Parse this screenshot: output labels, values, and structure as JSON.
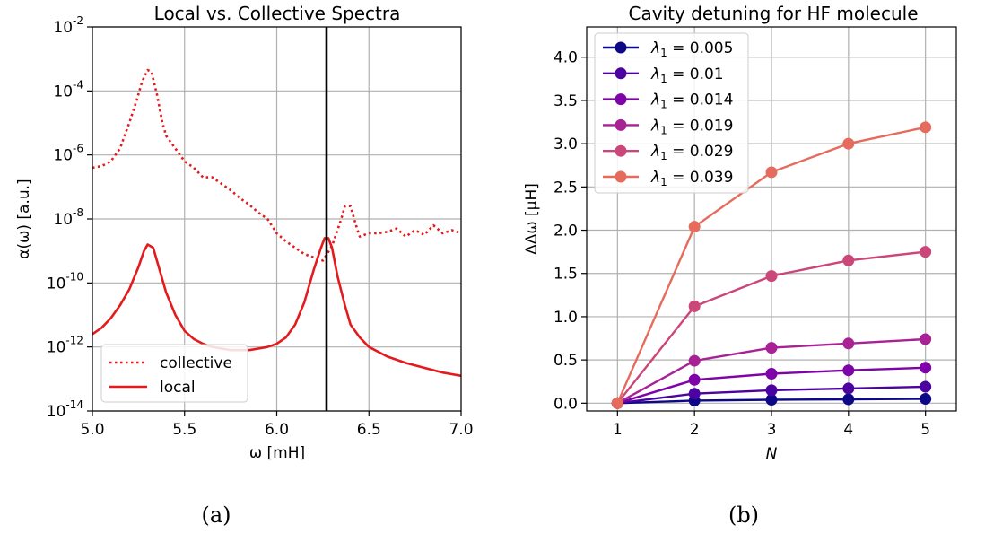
{
  "chart_data": [
    {
      "type": "line",
      "title": "Local vs. Collective Spectra",
      "xlabel": "ω [mH]",
      "ylabel": "α(ω) [a.u.]",
      "xlim": [
        5.0,
        7.0
      ],
      "ylim_log10": [
        -14,
        -2
      ],
      "yscale": "log",
      "grid": true,
      "legend_placement": "lower-left",
      "x_ticks": [
        "5.0",
        "5.5",
        "6.0",
        "6.5",
        "7.0"
      ],
      "x_tick_values": [
        5.0,
        5.5,
        6.0,
        6.5,
        7.0
      ],
      "y_tick_exponents": [
        "-14",
        "-12",
        "-10",
        "-8",
        "-6",
        "-4",
        "-2"
      ],
      "y_tick_values_log10": [
        -14,
        -12,
        -10,
        -8,
        -6,
        -4,
        -2
      ],
      "y_tick_base": "10",
      "vline_x": 6.27,
      "caption": "(a)",
      "series": [
        {
          "name": "collective",
          "style": "dotted",
          "color": "#e41a1c",
          "x": [
            5.0,
            5.05,
            5.1,
            5.15,
            5.2,
            5.24,
            5.27,
            5.3,
            5.32,
            5.35,
            5.38,
            5.4,
            5.45,
            5.5,
            5.55,
            5.6,
            5.65,
            5.7,
            5.75,
            5.8,
            5.85,
            5.9,
            5.95,
            6.0,
            6.05,
            6.1,
            6.15,
            6.2,
            6.25,
            6.3,
            6.35,
            6.37,
            6.4,
            6.43,
            6.45,
            6.5,
            6.55,
            6.6,
            6.65,
            6.7,
            6.75,
            6.8,
            6.85,
            6.9,
            6.95,
            7.0
          ],
          "log10_y": [
            -6.4,
            -6.35,
            -6.2,
            -5.8,
            -5.0,
            -4.3,
            -3.7,
            -3.35,
            -3.4,
            -4.1,
            -5.0,
            -5.4,
            -5.8,
            -6.2,
            -6.4,
            -6.7,
            -6.7,
            -6.9,
            -7.1,
            -7.35,
            -7.55,
            -7.8,
            -8.0,
            -8.45,
            -8.7,
            -8.9,
            -9.1,
            -9.2,
            -9.3,
            -8.85,
            -8.0,
            -7.6,
            -7.6,
            -8.2,
            -8.55,
            -8.45,
            -8.45,
            -8.4,
            -8.3,
            -8.55,
            -8.35,
            -8.5,
            -8.2,
            -8.45,
            -8.35,
            -8.45
          ]
        },
        {
          "name": "local",
          "style": "solid",
          "color": "#e41a1c",
          "x": [
            5.0,
            5.05,
            5.1,
            5.15,
            5.2,
            5.25,
            5.28,
            5.3,
            5.33,
            5.35,
            5.4,
            5.45,
            5.5,
            5.55,
            5.6,
            5.65,
            5.7,
            5.75,
            5.8,
            5.85,
            5.9,
            5.95,
            6.0,
            6.05,
            6.1,
            6.15,
            6.2,
            6.24,
            6.26,
            6.28,
            6.3,
            6.33,
            6.37,
            6.4,
            6.45,
            6.5,
            6.6,
            6.7,
            6.8,
            6.9,
            7.0
          ],
          "log10_y": [
            -11.6,
            -11.4,
            -11.1,
            -10.7,
            -10.2,
            -9.5,
            -9.0,
            -8.8,
            -8.9,
            -9.3,
            -10.3,
            -11.0,
            -11.5,
            -11.75,
            -11.9,
            -12.0,
            -12.05,
            -12.1,
            -12.1,
            -12.1,
            -12.05,
            -12.0,
            -11.9,
            -11.7,
            -11.3,
            -10.6,
            -9.6,
            -8.9,
            -8.6,
            -8.6,
            -8.9,
            -9.8,
            -10.7,
            -11.3,
            -11.7,
            -12.0,
            -12.3,
            -12.5,
            -12.65,
            -12.8,
            -12.9
          ]
        }
      ]
    },
    {
      "type": "line",
      "title": "Cavity detuning for HF molecule",
      "xlabel": "N",
      "ylabel": "ΔΔω [μH]",
      "xlim": [
        0.6,
        5.4
      ],
      "ylim": [
        -0.09,
        4.35
      ],
      "grid": true,
      "legend_placement": "top-left",
      "x_ticks": [
        "1",
        "2",
        "3",
        "4",
        "5"
      ],
      "x_tick_values": [
        1,
        2,
        3,
        4,
        5
      ],
      "y_ticks": [
        "0.0",
        "0.5",
        "1.0",
        "1.5",
        "2.0",
        "2.5",
        "3.0",
        "3.5",
        "4.0"
      ],
      "y_tick_values": [
        0.0,
        0.5,
        1.0,
        1.5,
        2.0,
        2.5,
        3.0,
        3.5,
        4.0
      ],
      "caption": "(b)",
      "categories": [
        1,
        2,
        3,
        4,
        5
      ],
      "series": [
        {
          "symbol": "λ",
          "subscript": "1",
          "value_text": " = 0.005",
          "color": "#0d0887",
          "values": [
            0.0,
            0.03,
            0.04,
            0.045,
            0.05
          ]
        },
        {
          "symbol": "λ",
          "subscript": "1",
          "value_text": " = 0.01",
          "color": "#4c02a1",
          "values": [
            0.0,
            0.11,
            0.15,
            0.17,
            0.19
          ]
        },
        {
          "symbol": "λ",
          "subscript": "1",
          "value_text": " = 0.014",
          "color": "#7e03a8",
          "values": [
            0.0,
            0.27,
            0.34,
            0.38,
            0.41
          ]
        },
        {
          "symbol": "λ",
          "subscript": "1",
          "value_text": " = 0.019",
          "color": "#a82296",
          "values": [
            0.0,
            0.49,
            0.64,
            0.69,
            0.74
          ]
        },
        {
          "symbol": "λ",
          "subscript": "1",
          "value_text": " = 0.029",
          "color": "#cb4679",
          "values": [
            0.0,
            1.12,
            1.47,
            1.65,
            1.75
          ]
        },
        {
          "symbol": "λ",
          "subscript": "1",
          "value_text": " = 0.039",
          "color": "#e56b5d",
          "values": [
            0.0,
            2.04,
            2.67,
            3.0,
            3.19
          ]
        }
      ]
    }
  ]
}
